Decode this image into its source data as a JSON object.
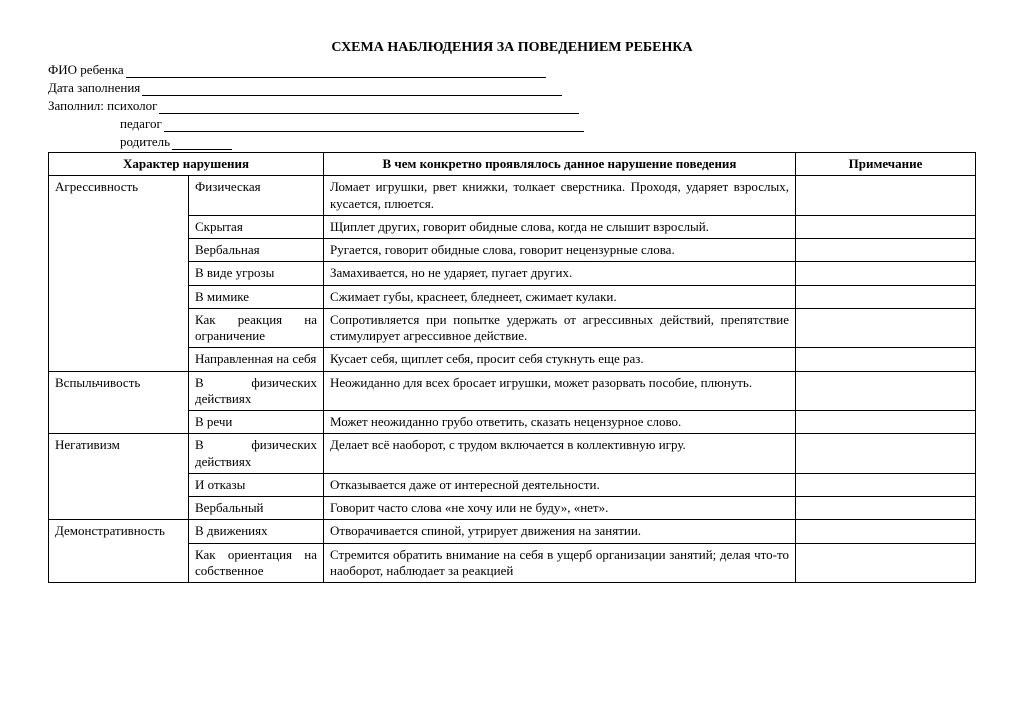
{
  "title": "СХЕМА НАБЛЮДЕНИЯ ЗА ПОВЕДЕНИЕМ РЕБЕНКА",
  "header": {
    "fio": "ФИО ребенка",
    "date": "Дата заполнения",
    "filled_by": "Заполнил: психолог",
    "teacher": "педагог",
    "parent": "родитель"
  },
  "columns": {
    "c1": "Характер нарушения",
    "c2": "В чем конкретно проявлялось данное нарушение поведения",
    "c3": "Примечание"
  },
  "groups": [
    {
      "name": "Агрессивность",
      "rows": [
        {
          "sub": "Физическая",
          "desc": "Ломает игрушки, рвет книжки, толкает сверстника. Проходя, ударяет взрослых, кусается, плюется."
        },
        {
          "sub": "Скрытая",
          "desc": "Щиплет других, говорит обидные слова, когда не слышит взрослый."
        },
        {
          "sub": "Вербальная",
          "desc": "Ругается, говорит обидные слова, говорит нецензурные слова."
        },
        {
          "sub": "В виде угрозы",
          "desc": "Замахивается, но не ударяет, пугает других."
        },
        {
          "sub": "В мимике",
          "desc": "Сжимает губы, краснеет, бледнеет, сжимает кулаки."
        },
        {
          "sub": "Как реакция на ограничение",
          "desc": "Сопротивляется при попытке удержать от агрессивных действий, препятствие стимулирует агрессивное действие."
        },
        {
          "sub": "Направленная на себя",
          "desc": "Кусает себя, щиплет себя, просит себя стукнуть еще раз."
        }
      ]
    },
    {
      "name": "Вспыльчивость",
      "rows": [
        {
          "sub": "В физических действиях",
          "desc": "Неожиданно для всех бросает игрушки, может разорвать пособие, плюнуть."
        },
        {
          "sub": "В речи",
          "desc": "Может неожиданно грубо ответить, сказать нецензурное слово."
        }
      ]
    },
    {
      "name": "Негативизм",
      "rows": [
        {
          "sub": "В физических действиях",
          "desc": "Делает всё наоборот, с трудом включается в коллективную игру."
        },
        {
          "sub": "И отказы",
          "desc": "Отказывается даже от интересной деятельности."
        },
        {
          "sub": "Вербальный",
          "desc": "Говорит часто слова «не хочу или не буду», «нет»."
        }
      ]
    },
    {
      "name": "Демонстративность",
      "rows": [
        {
          "sub": "В движениях",
          "desc": "Отворачивается спиной, утрирует движения на занятии."
        },
        {
          "sub": "Как ориентация на собственное",
          "desc": "Стремится обратить внимание на себя в ущерб организации занятий; делая что-то наоборот, наблюдает за реакцией"
        }
      ]
    }
  ]
}
